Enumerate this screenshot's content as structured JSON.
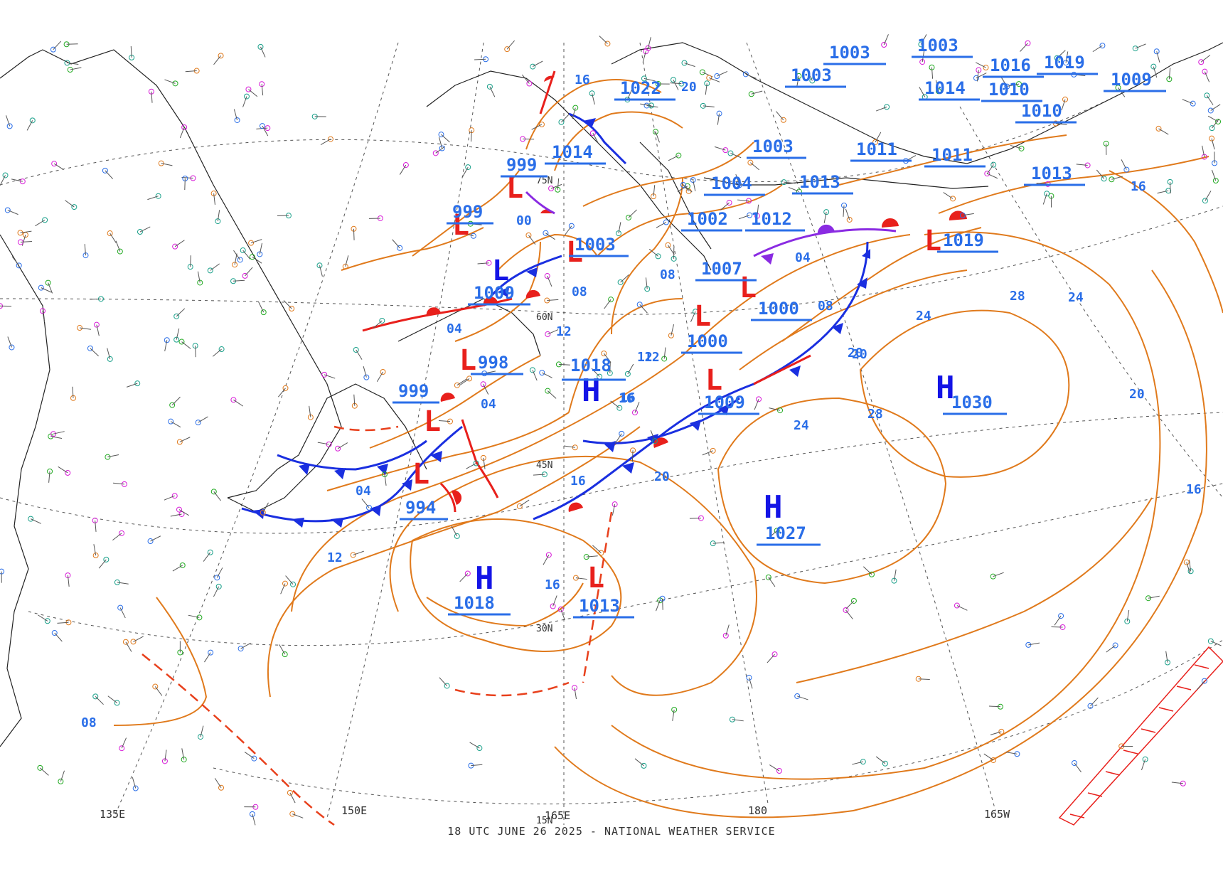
{
  "footer": "18 UTC JUNE 26 2025 - NATIONAL WEATHER SERVICE",
  "colors": {
    "low": "#e8201c",
    "high": "#1414e6",
    "pressure_label": "#2a6ee8",
    "isobar": "#e07a1c",
    "cold_front": "#1a2fe0",
    "warm_front": "#e8201c",
    "occluded": "#8a2be2",
    "coast": "#222222",
    "grid": "#555555"
  },
  "lat_labels": [
    "75N",
    "60N",
    "45N",
    "30N",
    "15N"
  ],
  "lon_labels": [
    "135E",
    "150E",
    "165E",
    "180",
    "165W"
  ],
  "highs": [
    {
      "value": "1018"
    },
    {
      "value": "1018"
    },
    {
      "value": "1027"
    },
    {
      "value": "1030"
    }
  ],
  "lows": [
    {
      "value": "999"
    },
    {
      "value": "999"
    },
    {
      "value": "1003"
    },
    {
      "value": "1009"
    },
    {
      "value": "998"
    },
    {
      "value": "999"
    },
    {
      "value": "994"
    },
    {
      "value": "1013"
    },
    {
      "value": "1000"
    },
    {
      "value": "1009"
    },
    {
      "value": "1019"
    },
    {
      "value": "1007"
    }
  ],
  "pressure_labels": [
    "1022",
    "1014",
    "1003",
    "1004",
    "1013",
    "1011",
    "1002",
    "1012",
    "1000",
    "1011",
    "1013",
    "1019",
    "1016",
    "1009",
    "1014",
    "1010",
    "1010",
    "1003",
    "1003",
    "1003"
  ],
  "isobar_labels": [
    "16",
    "20",
    "16",
    "12",
    "12",
    "16",
    "16",
    "20",
    "20",
    "24",
    "28",
    "24",
    "28",
    "20",
    "16",
    "24",
    "16",
    "12",
    "08",
    "08",
    "04",
    "04",
    "04",
    "00",
    "04",
    "08",
    "08",
    "16",
    "12",
    "20"
  ]
}
